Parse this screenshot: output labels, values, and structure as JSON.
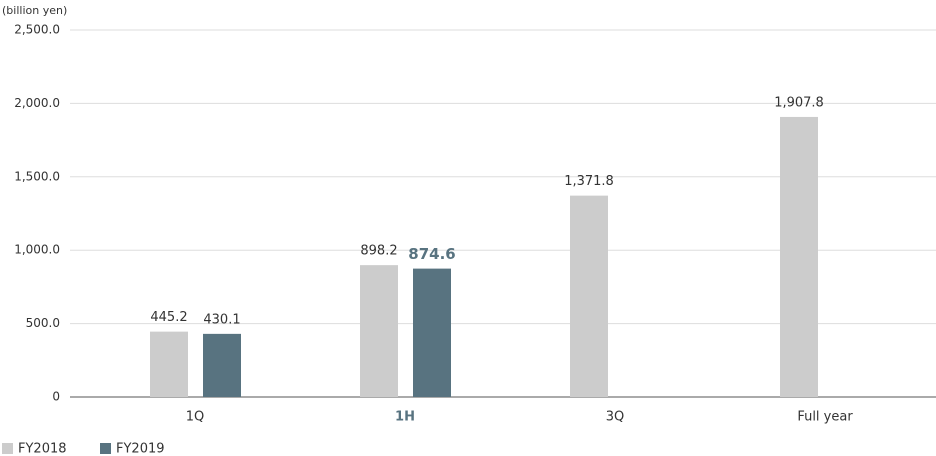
{
  "chart_data": {
    "type": "bar",
    "y_axis_label": "(billion yen)",
    "categories": [
      "1Q",
      "1H",
      "3Q",
      "Full year"
    ],
    "series": [
      {
        "name": "FY2018",
        "color": "#cccccc",
        "values": [
          445.2,
          898.2,
          1371.8,
          1907.8
        ],
        "value_labels": [
          "445.2",
          "898.2",
          "1,371.8",
          "1,907.8"
        ]
      },
      {
        "name": "FY2019",
        "color": "#587380",
        "values": [
          430.1,
          874.6,
          null,
          null
        ],
        "value_labels": [
          "430.1",
          "874.6",
          null,
          null
        ]
      }
    ],
    "ylim": [
      0,
      2500
    ],
    "yticks": [
      0,
      {
        "value": 500,
        "label": "500.0"
      },
      {
        "value": 1000,
        "label": "1,000.0"
      },
      {
        "value": 1500,
        "label": "1,500.0"
      },
      {
        "value": 2000,
        "label": "2,000.0"
      },
      {
        "value": 2500,
        "label": "2,500.0"
      }
    ],
    "grid": true,
    "legend": "bottom-left"
  }
}
